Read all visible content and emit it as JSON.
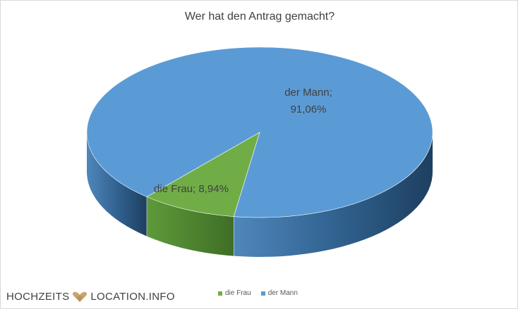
{
  "chart_data": {
    "type": "pie",
    "style": "3d",
    "title": "Wer hat den Antrag gemacht?",
    "categories": [
      "die Frau",
      "der Mann"
    ],
    "values": [
      8.94,
      91.06
    ],
    "unit": "%",
    "data_labels": [
      "die Frau; 8,94%",
      "der Mann;\n91,06%"
    ],
    "data_label_lines": [
      [
        "die Frau; 8,94%"
      ],
      [
        "der Mann;",
        "91,06%"
      ]
    ],
    "colors": [
      "#70ad47",
      "#5b9bd5"
    ],
    "legend": {
      "position": "bottom",
      "entries": [
        "die Frau",
        "der Mann"
      ]
    }
  },
  "logo": {
    "left_text": "HOCHZEITS",
    "right_text": "LOCATION.INFO",
    "color": "#c9a46a"
  }
}
